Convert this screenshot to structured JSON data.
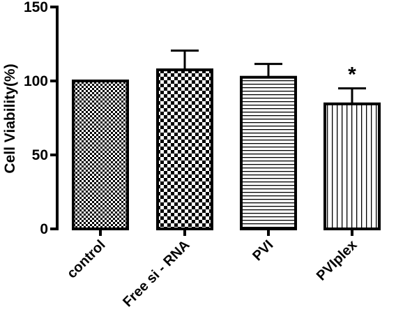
{
  "chart_data": {
    "type": "bar",
    "title": "",
    "xlabel": "",
    "ylabel": "Cell Viability(%)",
    "ylim": [
      0,
      150
    ],
    "yticks": [
      0,
      50,
      100,
      150
    ],
    "grid": false,
    "categories": [
      "control",
      "Free si - RNA",
      "PVI",
      "PVIplex"
    ],
    "values": [
      100,
      107.5,
      102.5,
      84.5
    ],
    "error": [
      0,
      13,
      9,
      10.5
    ],
    "patterns": [
      "fine-checker",
      "coarse-checker",
      "horizontal-lines",
      "vertical-lines"
    ],
    "annotations": [
      "",
      "",
      "",
      "*"
    ],
    "colors": {
      "ink": "#000000",
      "background": "#ffffff"
    }
  }
}
